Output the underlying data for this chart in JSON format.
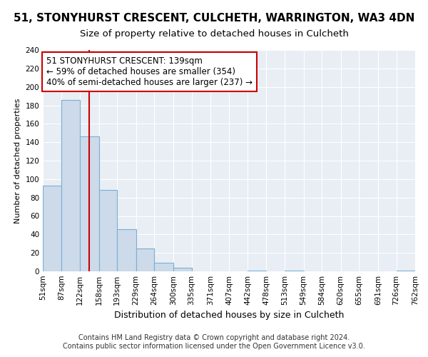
{
  "title": "51, STONYHURST CRESCENT, CULCHETH, WARRINGTON, WA3 4DN",
  "subtitle": "Size of property relative to detached houses in Culcheth",
  "xlabel": "Distribution of detached houses by size in Culcheth",
  "ylabel": "Number of detached properties",
  "bin_edges": [
    51,
    87,
    122,
    158,
    193,
    229,
    264,
    300,
    335,
    371,
    407,
    442,
    478,
    513,
    549,
    584,
    620,
    655,
    691,
    726,
    762
  ],
  "bin_labels": [
    "51sqm",
    "87sqm",
    "122sqm",
    "158sqm",
    "193sqm",
    "229sqm",
    "264sqm",
    "300sqm",
    "335sqm",
    "371sqm",
    "407sqm",
    "442sqm",
    "478sqm",
    "513sqm",
    "549sqm",
    "584sqm",
    "620sqm",
    "655sqm",
    "691sqm",
    "726sqm",
    "762sqm"
  ],
  "bar_heights": [
    93,
    186,
    146,
    88,
    46,
    25,
    9,
    4,
    0,
    0,
    0,
    1,
    0,
    1,
    0,
    0,
    0,
    0,
    0,
    1
  ],
  "bar_color": "#ccdaea",
  "bar_edgecolor": "#7bafd4",
  "property_line_x": 139,
  "property_line_color": "#cc0000",
  "annotation_line1": "51 STONYHURST CRESCENT: 139sqm",
  "annotation_line2": "← 59% of detached houses are smaller (354)",
  "annotation_line3": "40% of semi-detached houses are larger (237) →",
  "annotation_box_edgecolor": "#cc0000",
  "annotation_box_facecolor": "#ffffff",
  "ylim": [
    0,
    240
  ],
  "yticks": [
    0,
    20,
    40,
    60,
    80,
    100,
    120,
    140,
    160,
    180,
    200,
    220,
    240
  ],
  "footer_text": "Contains HM Land Registry data © Crown copyright and database right 2024.\nContains public sector information licensed under the Open Government Licence v3.0.",
  "bg_color": "#e8eef4",
  "grid_color": "#ffffff",
  "title_fontsize": 11,
  "subtitle_fontsize": 9.5,
  "xlabel_fontsize": 9,
  "ylabel_fontsize": 8,
  "tick_fontsize": 7.5,
  "annotation_fontsize": 8.5,
  "footer_fontsize": 7
}
